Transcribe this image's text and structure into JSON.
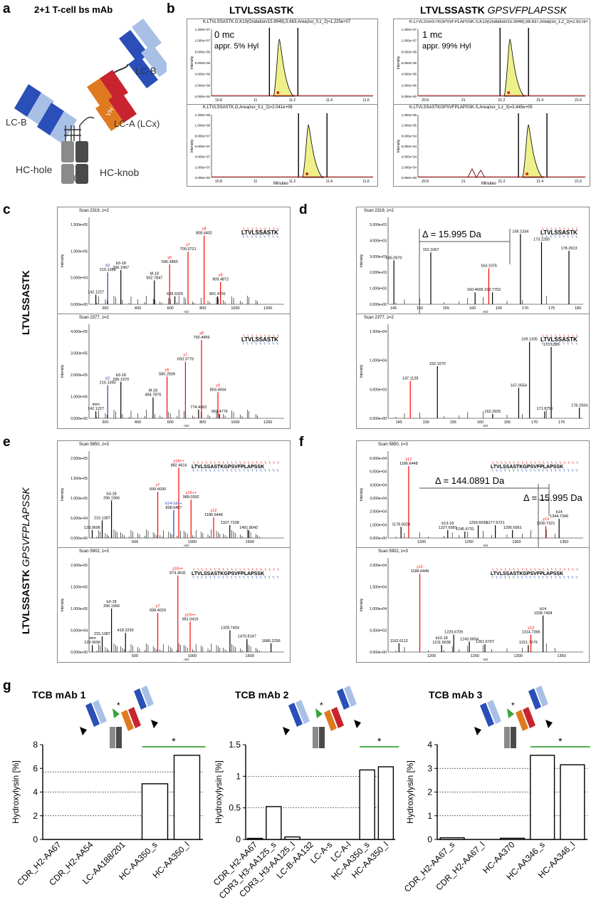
{
  "panels": {
    "a": "a",
    "b": "b",
    "c": "c",
    "d": "d",
    "e": "e",
    "f": "f",
    "g": "g"
  },
  "a": {
    "title": "2+1 T-cell bs mAb",
    "labels": {
      "lcb_top": "LC-B",
      "lcb_left": "LC-B",
      "vl": "VL",
      "ch1": "CH1",
      "vh": "VH",
      "ck": "Cκ",
      "lca": "LC-A (LCx)",
      "hc_hole": "HC-hole",
      "hc_knob": "HC-knob"
    }
  },
  "b": {
    "peptide_left": "LTVLSSASTK",
    "peptide_right_bold": "LTVLSSASTK",
    "peptide_right_italic": "GPSVFPLAPSSK",
    "xlabel": "Minutes",
    "ylabel": "Intensity",
    "plots": [
      {
        "header": "K.LTVLSSASTK.G,K10(Oxidation/15.9949),5.663,Area(iso_0,z_2)=1.225e+07",
        "ann1": "0 mc",
        "ann2": "appr. 5% Hyl",
        "yticks": [
          "0.000e+00",
          "2.000e+06",
          "4.000e+06",
          "6.000e+06",
          "8.000e+06",
          "1.000e+07",
          "1.200e+07"
        ],
        "xticks": [
          "10.8",
          "11",
          "11.2",
          "11.4",
          "11.6"
        ]
      },
      {
        "header": "K.LTVLSSASTKGPSVFPLAPSSK.S,K10(Oxidation/15.9949),98.837,Area(iso_1,z_3)=2.927e+07",
        "ann1": "1 mc",
        "ann2": "appr. 99% Hyl",
        "yticks": [
          "0.000e+00",
          "2.000e+06",
          "4.000e+06",
          "6.000e+06",
          "8.000e+06",
          "1.000e+07",
          "1.200e+07"
        ],
        "xticks": [
          "20.8",
          "21",
          "21.2",
          "21.4",
          "21.6"
        ]
      },
      {
        "header": "K.LTVLSSASTK.G,Area(iso_0,z_2)=2.041e+08",
        "ann1": "",
        "ann2": "",
        "yticks": [
          "0.000e+00",
          "2.000e+07",
          "4.000e+07",
          "6.000e+07",
          "8.000e+07",
          "1.000e+08",
          "1.200e+08"
        ],
        "xticks": [
          "10.8",
          "11",
          "11.2",
          "11.4",
          "11.6"
        ]
      },
      {
        "header": "K.LTVLSSASTKGPSVFPLAPSSK.S,Area(iso_1,z_3)=3.445e+05",
        "ann1": "",
        "ann2": "",
        "yticks": [
          "0.000e+00",
          "2.000e+04",
          "4.000e+04",
          "6.000e+04",
          "8.000e+04",
          "1.000e+05",
          "1.200e+05"
        ],
        "xticks": [
          "20.8",
          "21",
          "21.2",
          "21.4",
          "21.6"
        ]
      }
    ]
  },
  "cd": {
    "side_label": "LTVLSSASTK",
    "c_top_scan": "Scan 2319, z=2",
    "c_bottom_scan": "Scan 2377, z=2",
    "d_top_scan": "Scan 2319, z=2",
    "d_bottom_scan": "Scan 2377, z=2",
    "seq": "LTVLSSASTK",
    "delta_d": "Δ = 15.995 Da",
    "xlabel": "m/z",
    "ylabel": "Intensity",
    "c_top_yticks": [
      "0.000e+00",
      "5.000e+04",
      "1.000e+05",
      "1.500e+05"
    ],
    "c_bottom_yticks": [
      "0.000e+00",
      "1.000e+05",
      "2.000e+05",
      "3.000e+05",
      "4.000e+05"
    ],
    "c_xticks": [
      "200",
      "400",
      "600",
      "800",
      "1000",
      "1200"
    ],
    "d_top_yticks": [
      "0.000e+00",
      "1.000e+03",
      "2.000e+03",
      "3.000e+03",
      "4.000e+03",
      "5.000e+03"
    ],
    "d_bottom_yticks": [
      "0.000e+00",
      "5.000e+03",
      "1.000e+04",
      "1.500e+04"
    ],
    "d_top_xticks": [
      "145",
      "150",
      "155",
      "160",
      "165",
      "170",
      "175",
      "180"
    ],
    "d_bottom_xticks": [
      "145",
      "150",
      "155",
      "160",
      "165",
      "170",
      "175"
    ],
    "c_top_peaks": [
      {
        "label": "808.4402",
        "x": 808,
        "h": 0.86,
        "c": "red",
        "ion": "y8"
      },
      {
        "label": "709.3721",
        "x": 709,
        "h": 0.66,
        "c": "red",
        "ion": "y7"
      },
      {
        "label": "596.2883",
        "x": 596,
        "h": 0.5,
        "c": "red",
        "ion": "y6"
      },
      {
        "label": "296.1967",
        "x": 296,
        "h": 0.43,
        "c": "#000",
        "ion": "b3-18"
      },
      {
        "label": "215.1388",
        "x": 215,
        "h": 0.4,
        "c": "#2040c0",
        "ion": "b2"
      },
      {
        "label": "909.4872",
        "x": 909,
        "h": 0.28,
        "c": "red",
        "ion": "y9"
      },
      {
        "label": "628.3325",
        "x": 628,
        "h": 0.1,
        "c": "#000",
        "ion": ""
      },
      {
        "label": "891.4791",
        "x": 891,
        "h": 0.1,
        "c": "#000",
        "ion": ""
      },
      {
        "label": "142.1227",
        "x": 142,
        "h": 0.12,
        "c": "#000",
        "ion": ""
      },
      {
        "label": "502.7847",
        "x": 502,
        "h": 0.3,
        "c": "#000",
        "ion": "M-18"
      }
    ],
    "c_bottom_peaks": [
      {
        "label": "792.4459",
        "x": 792,
        "h": 0.9,
        "c": "red",
        "ion": "y8"
      },
      {
        "label": "693.3779",
        "x": 693,
        "h": 0.65,
        "c": "red",
        "ion": "y7"
      },
      {
        "label": "580.2939",
        "x": 580,
        "h": 0.48,
        "c": "red",
        "ion": "y6"
      },
      {
        "label": "296.1970",
        "x": 296,
        "h": 0.42,
        "c": "#000",
        "ion": "b3-18"
      },
      {
        "label": "893.4934",
        "x": 893,
        "h": 0.3,
        "c": "red",
        "ion": "y9"
      },
      {
        "label": "774.4362",
        "x": 774,
        "h": 0.1,
        "c": "#000",
        "ion": ""
      },
      {
        "label": "903.4776",
        "x": 903,
        "h": 0.05,
        "c": "#000",
        "ion": ""
      },
      {
        "label": "142.1227",
        "x": 142,
        "h": 0.08,
        "c": "#000",
        "ion": "imm"
      },
      {
        "label": "494.7876",
        "x": 494,
        "h": 0.24,
        "c": "#000",
        "ion": "M-18"
      },
      {
        "label": "215.1390",
        "x": 215,
        "h": 0.38,
        "c": "#2040c0",
        "ion": "b2"
      }
    ],
    "d_top_peaks": [
      {
        "label": "145.0970",
        "x": 145.1,
        "h": 0.55,
        "c": "#000"
      },
      {
        "label": "152.1067",
        "x": 152.1,
        "h": 0.65,
        "c": "#000"
      },
      {
        "label": "163.1076",
        "x": 163.1,
        "h": 0.45,
        "c": "red"
      },
      {
        "label": "160.4696",
        "x": 160.5,
        "h": 0.15,
        "c": "#000"
      },
      {
        "label": "163.7753",
        "x": 163.8,
        "h": 0.15,
        "c": "#000"
      },
      {
        "label": "169.1334",
        "x": 169.1,
        "h": 0.88,
        "c": "#000"
      },
      {
        "label": "173.1283",
        "x": 173.1,
        "h": 0.78,
        "c": "#000"
      },
      {
        "label": "178.2913",
        "x": 178.3,
        "h": 0.67,
        "c": "#000"
      }
    ],
    "d_bottom_peaks": [
      {
        "label": "147.1128",
        "x": 147.1,
        "h": 0.43,
        "c": "red"
      },
      {
        "label": "152.1070",
        "x": 152.1,
        "h": 0.6,
        "c": "#000"
      },
      {
        "label": "162.2925",
        "x": 162.3,
        "h": 0.05,
        "c": "#000"
      },
      {
        "label": "167.0554",
        "x": 167.1,
        "h": 0.35,
        "c": "#000"
      },
      {
        "label": "169.1335",
        "x": 169.1,
        "h": 0.88,
        "c": "#000"
      },
      {
        "label": "171.8756",
        "x": 171.9,
        "h": 0.08,
        "c": "#000"
      },
      {
        "label": "173.1285",
        "x": 173.1,
        "h": 0.82,
        "c": "#000"
      },
      {
        "label": "178.2934",
        "x": 178.3,
        "h": 0.12,
        "c": "#000"
      }
    ]
  },
  "ef": {
    "side_label_bold": "LTVLSSASTK",
    "side_label_italic": "GPSVFPLAPSSK",
    "e_top_scan": "Scan 5850, z=3",
    "e_bottom_scan": "Scan 5902, z=3",
    "f_top_scan": "Scan 5850, z=3",
    "f_bottom_scan": "Scan 5902, z=3",
    "seq": "LTVLSSASTKGPSVFPLAPSSK",
    "delta_f1": "Δ = 144.0891 Da",
    "delta_f2": "Δ = 15.995 Da",
    "xlabel": "m/z",
    "ylabel": "Intensity",
    "e_top_yticks": [
      "0.000e+00",
      "5.000e+04",
      "1.000e+05",
      "1.500e+05",
      "2.000e+05"
    ],
    "e_bottom_yticks": [
      "0.000e+00",
      "5.000e+04",
      "1.000e+05",
      "1.500e+05",
      "2.000e+05"
    ],
    "e_xticks": [
      "500",
      "1000",
      "1500"
    ],
    "f_top_yticks": [
      "0.000e+00",
      "1.000e+04",
      "2.000e+04",
      "3.000e+04",
      "4.000e+04",
      "5.000e+04",
      "6.000e+04"
    ],
    "f_bottom_yticks": [
      "0.000e+00",
      "5.000e+03",
      "1.000e+04",
      "1.500e+04",
      "2.000e+04"
    ],
    "f_xticks": [
      "1200",
      "1250",
      "1300",
      "1350"
    ],
    "e_top_peaks": [
      {
        "label": "882.4616",
        "x": 882,
        "h": 0.88,
        "c": "red",
        "ion": "y18++"
      },
      {
        "label": "699.4030",
        "x": 699,
        "h": 0.58,
        "c": "red",
        "ion": "y7"
      },
      {
        "label": "989.0392",
        "x": 989,
        "h": 0.48,
        "c": "red",
        "ion": "y19++"
      },
      {
        "label": "296.1966",
        "x": 296,
        "h": 0.47,
        "c": "#000",
        "ion": "b3-18"
      },
      {
        "label": "838.9457",
        "x": 838,
        "h": 0.35,
        "c": "#2040c0",
        "ion": "b14-18++"
      },
      {
        "label": "1186.6448",
        "x": 1186,
        "h": 0.26,
        "c": "red",
        "ion": "y12"
      },
      {
        "label": "1491.8042",
        "x": 1491,
        "h": 0.1,
        "c": "#000",
        "ion": ""
      },
      {
        "label": "128.0606",
        "x": 128,
        "h": 0.1,
        "c": "#000",
        "ion": ""
      },
      {
        "label": "215.1387",
        "x": 215,
        "h": 0.22,
        "c": "#000",
        "ion": ""
      },
      {
        "label": "1327.7238",
        "x": 1327,
        "h": 0.16,
        "c": "#000",
        "ion": ""
      }
    ],
    "e_bottom_peaks": [
      {
        "label": "874.4641",
        "x": 874,
        "h": 0.88,
        "c": "red",
        "ion": "y18++"
      },
      {
        "label": "699.4029",
        "x": 699,
        "h": 0.45,
        "c": "red",
        "ion": "y7"
      },
      {
        "label": "981.0419",
        "x": 981,
        "h": 0.35,
        "c": "red",
        "ion": "y19++"
      },
      {
        "label": "296.1966",
        "x": 296,
        "h": 0.5,
        "c": "#000",
        "ion": "b3-18"
      },
      {
        "label": "1328.7404",
        "x": 1328,
        "h": 0.25,
        "c": "#000",
        "ion": ""
      },
      {
        "label": "1476.8147",
        "x": 1476,
        "h": 0.15,
        "c": "#000",
        "ion": ""
      },
      {
        "label": "1686.2256",
        "x": 1686,
        "h": 0.1,
        "c": "#000",
        "ion": ""
      },
      {
        "label": "418.2293",
        "x": 418,
        "h": 0.22,
        "c": "#000",
        "ion": ""
      },
      {
        "label": "129.0696",
        "x": 129,
        "h": 0.08,
        "c": "#000",
        "ion": "imm"
      },
      {
        "label": "215.1387",
        "x": 215,
        "h": 0.18,
        "c": "#000",
        "ion": ""
      }
    ],
    "f_top_peaks": [
      {
        "label": "1186.6448",
        "x": 1186.6,
        "h": 0.9,
        "c": "red",
        "ion": "y12"
      },
      {
        "label": "1178.6024",
        "x": 1178.6,
        "h": 0.14,
        "c": "#000",
        "ion": ""
      },
      {
        "label": "1227.6581",
        "x": 1227.7,
        "h": 0.1,
        "c": "#000",
        "ion": "b13-18"
      },
      {
        "label": "1245.6731",
        "x": 1245.7,
        "h": 0.08,
        "c": "#000",
        "ion": ""
      },
      {
        "label": "1259.6599",
        "x": 1259.7,
        "h": 0.16,
        "c": "#000",
        "ion": ""
      },
      {
        "label": "1277.6721",
        "x": 1277.7,
        "h": 0.16,
        "c": "#000",
        "ion": ""
      },
      {
        "label": "1295.6951",
        "x": 1295.7,
        "h": 0.1,
        "c": "#000",
        "ion": ""
      },
      {
        "label": "1330.7321",
        "x": 1330.7,
        "h": 0.15,
        "c": "red",
        "ion": "y13"
      },
      {
        "label": "1344.7346",
        "x": 1344.7,
        "h": 0.24,
        "c": "#000",
        "ion": "b14"
      }
    ],
    "f_bottom_peaks": [
      {
        "label": "1186.6449",
        "x": 1186.6,
        "h": 0.9,
        "c": "red",
        "ion": "y12"
      },
      {
        "label": "1162.6112",
        "x": 1162.6,
        "h": 0.1,
        "c": "#000",
        "ion": ""
      },
      {
        "label": "1211.6638",
        "x": 1211.7,
        "h": 0.08,
        "c": "#000",
        "ion": "b13-18"
      },
      {
        "label": "1225.6709",
        "x": 1225.7,
        "h": 0.2,
        "c": "#000",
        "ion": ""
      },
      {
        "label": "1243.6654",
        "x": 1243.7,
        "h": 0.12,
        "c": "#000",
        "ion": ""
      },
      {
        "label": "1261.6707",
        "x": 1261.7,
        "h": 0.09,
        "c": "#000",
        "ion": ""
      },
      {
        "label": "1311.7279",
        "x": 1311.7,
        "h": 0.08,
        "c": "#000",
        "ion": ""
      },
      {
        "label": "1314.7366",
        "x": 1314.7,
        "h": 0.2,
        "c": "red",
        "ion": "y13"
      },
      {
        "label": "1328.7404",
        "x": 1328.7,
        "h": 0.42,
        "c": "#000",
        "ion": "b14"
      }
    ]
  },
  "chart_data": [
    {
      "type": "bar",
      "title": "TCB mAb 1",
      "ylabel": "Hydroxylysin [%]",
      "categories": [
        "CDR_H2-AA67",
        "CDR_H2-AA54",
        "LC-AA188/201",
        "HC-AA350_s",
        "HC-AA350_l"
      ],
      "values": [
        0,
        0,
        0,
        4.7,
        7.1
      ],
      "ylim": [
        0,
        8
      ],
      "yticks": [
        "0",
        "2",
        "4",
        "6",
        "8"
      ],
      "gridlines": [
        2,
        4,
        5.7
      ],
      "significance": "*",
      "sig_from": 3,
      "sig_to": 4
    },
    {
      "type": "bar",
      "title": "TCB mAb 2",
      "ylabel": "Hydroxylysin [%]",
      "categories": [
        "CDR_H2-AA67",
        "CDR3_H3-AA125_s",
        "CDR3_H3-AA125_l",
        "LC-B-AA132",
        "LC-A-s",
        "LC-A-l",
        "HC-AA350_s",
        "HC-AA350_l"
      ],
      "values": [
        0.01,
        0.52,
        0.04,
        0,
        0,
        0,
        1.1,
        1.15
      ],
      "ylim": [
        0,
        1.5
      ],
      "yticks": [
        "0",
        "0.5",
        "1",
        "1.5"
      ],
      "gridlines": [
        0.5,
        1
      ],
      "significance": "*",
      "sig_from": 6,
      "sig_to": 7
    },
    {
      "type": "bar",
      "title": "TCB mAb 3",
      "ylabel": "Hydroxylysin [%]",
      "categories": [
        "CDR_H2-AA67_s",
        "CDR_H2-AA67_l",
        "HC-AA370",
        "HC-AA346_s",
        "HC-AA346_l"
      ],
      "values": [
        0.07,
        0,
        0.05,
        3.55,
        3.15
      ],
      "ylim": [
        0,
        4
      ],
      "yticks": [
        "0",
        "1",
        "2",
        "3",
        "4"
      ],
      "gridlines": [
        1,
        2,
        3
      ],
      "significance": "*",
      "sig_from": 3,
      "sig_to": 4
    }
  ],
  "colors": {
    "accent_red": "#e02020",
    "accent_blue": "#2a4fb8",
    "peak_fill": "#eef08a",
    "sig_green": "#3aa43a",
    "dark_blue": "#2a4fb8",
    "light_blue": "#a9c0e6",
    "orange": "#e07a20",
    "dark_red": "#c8242f",
    "gray": "#8a8a8a",
    "dark_gray": "#4a4a4a"
  }
}
